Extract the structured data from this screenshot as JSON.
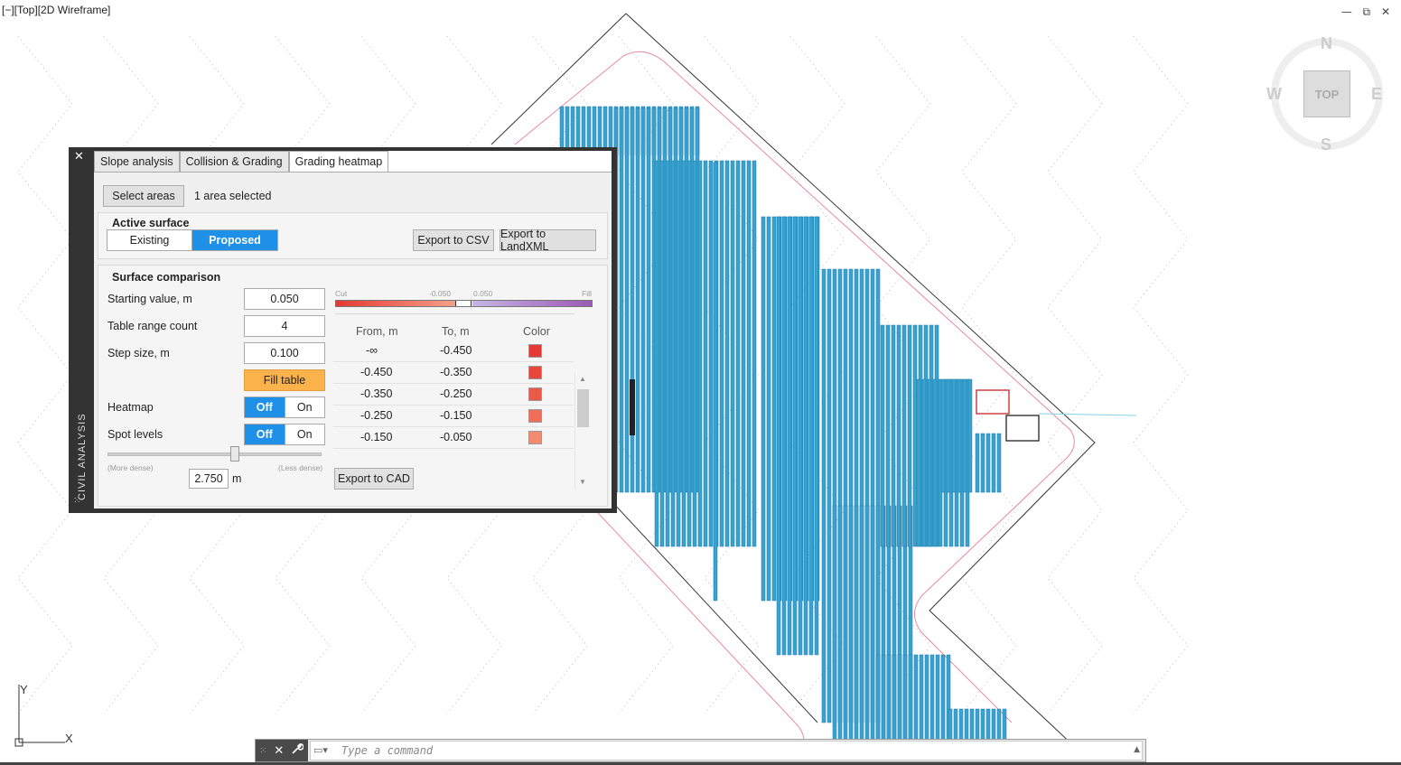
{
  "viewport": {
    "label": "[−][Top][2D Wireframe]",
    "window_controls": [
      "minimize-icon",
      "restore-icon",
      "close-icon"
    ],
    "compass": {
      "north": "N",
      "south": "S",
      "east": "E",
      "west": "W",
      "cube_face": "TOP"
    },
    "ucs": {
      "x": "X",
      "y": "Y"
    }
  },
  "panel": {
    "title": "CIVIL ANALYSIS",
    "close_label": "✕",
    "tabs": [
      "Slope analysis",
      "Collision & Grading",
      "Grading heatmap"
    ],
    "active_tab": "Grading heatmap",
    "select_areas_label": "Select areas",
    "areas_status": "1 area selected",
    "active_surface": {
      "heading": "Active surface",
      "existing_label": "Existing",
      "proposed_label": "Proposed",
      "selected": "Proposed"
    },
    "export_csv_label": "Export to CSV",
    "export_landxml_label": "Export to LandXML",
    "surface_comparison": {
      "heading": "Surface comparison",
      "starting_value_label": "Starting value, m",
      "starting_value": "0.050",
      "range_count_label": "Table range count",
      "range_count": "4",
      "step_size_label": "Step size, m",
      "step_size": "0.100",
      "fill_table_label": "Fill table",
      "heatmap_label": "Heatmap",
      "spot_levels_label": "Spot levels",
      "off_label": "Off",
      "on_label": "On",
      "heatmap_state": "Off",
      "spot_levels_state": "Off",
      "slider_left_label": "(More dense)",
      "slider_right_label": "(Less dense)",
      "slider_value": "2.750",
      "slider_unit": "m",
      "slider_level": 0.6
    },
    "gradient": {
      "cut_label": "Cut",
      "fill_label": "Fill",
      "neg_label": "-0.050",
      "pos_label": "0.050",
      "cut_color": "#e53935",
      "fill_color": "#9b59b6"
    },
    "table": {
      "headers": [
        "From, m",
        "To, m",
        "Color"
      ],
      "rows": [
        {
          "from": "-∞",
          "to": "-0.450",
          "color": "#e53935"
        },
        {
          "from": "-0.450",
          "to": "-0.350",
          "color": "#e8473b"
        },
        {
          "from": "-0.350",
          "to": "-0.250",
          "color": "#eb5a47"
        },
        {
          "from": "-0.250",
          "to": "-0.150",
          "color": "#ee6e5a"
        },
        {
          "from": "-0.150",
          "to": "-0.050",
          "color": "#f28b70"
        }
      ]
    },
    "export_cad_label": "Export to CAD"
  },
  "command_line": {
    "placeholder": "Type a command",
    "close_label": "✕",
    "wrench_label": "🔧"
  }
}
